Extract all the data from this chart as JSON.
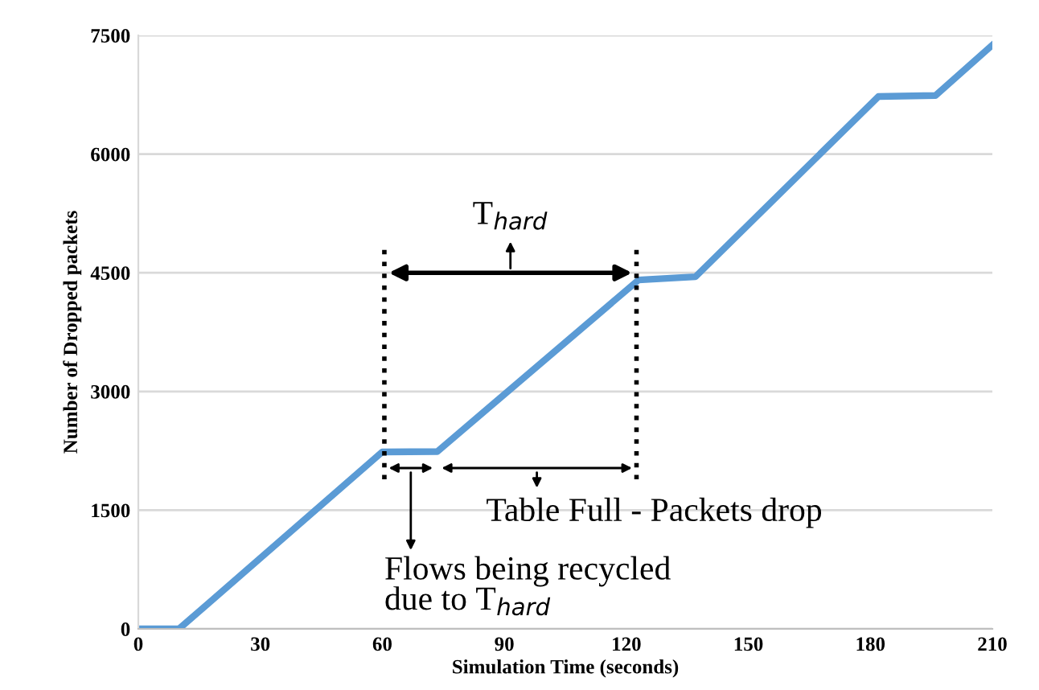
{
  "chart_data": {
    "type": "line",
    "xlabel": "Simulation Time (seconds)",
    "ylabel": "Number of Dropped packets",
    "x": [
      0,
      10,
      60,
      73.5,
      123,
      137,
      182,
      196,
      210
    ],
    "series": [
      {
        "color": "#5b9bd5",
        "values": [
          0,
          0,
          2236,
          2240,
          4410,
          4450,
          6728,
          6740,
          7378
        ]
      }
    ],
    "xlim": [
      0,
      210
    ],
    "xticks": [
      0,
      30,
      60,
      90,
      120,
      150,
      180,
      210
    ],
    "ylim": [
      0,
      7500
    ],
    "yticks": [
      0,
      1500,
      3000,
      4500,
      6000,
      7500
    ],
    "grid": "y",
    "legend": false,
    "marker": "none",
    "line_style": "solid",
    "ref_lines": [
      {
        "axis": "x",
        "value": 60.5,
        "color": "#000000",
        "line_style": "dotted"
      },
      {
        "axis": "x",
        "value": 122.5,
        "color": "#000000",
        "line_style": "dotted"
      }
    ],
    "annotations": [
      "T$_{hard}$",
      "Table Full - Packets drop",
      "Flows being recycled\ndue to T$_{hard}$"
    ]
  }
}
